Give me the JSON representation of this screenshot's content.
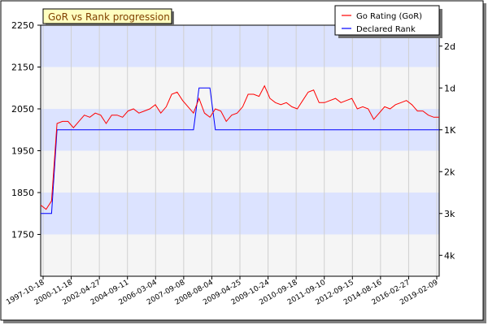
{
  "chart_data": {
    "type": "line",
    "title": "GoR vs Rank progression",
    "legend": {
      "placement": "top-right",
      "entries": [
        {
          "name": "Go Rating (GoR)",
          "color": "#ff0000"
        },
        {
          "name": "Declared Rank",
          "color": "#0000ff"
        }
      ]
    },
    "colors": {
      "band_blue": "#dce3ff",
      "band_grey": "#f5f5f5",
      "title_bg": "#ffffc0"
    },
    "x_tick_labels": [
      "1997-10-18",
      "2000-11-18",
      "2002-04-27",
      "2004-09-11",
      "2006-03-04",
      "2007-09-08",
      "2008-08-04",
      "2009-04-25",
      "2009-10-24",
      "2010-09-18",
      "2011-09-10",
      "2012-09-15",
      "2014-08-16",
      "2016-02-27",
      "2019-02-09"
    ],
    "y_left": {
      "ticks": [
        2250,
        2150,
        2050,
        1950,
        1850,
        1750
      ],
      "ylim": [
        1650,
        2250
      ]
    },
    "y_right": {
      "ticks": [
        "2d",
        "1d",
        "1K",
        "2k",
        "3k",
        "4k"
      ]
    },
    "grid": true,
    "series": [
      {
        "name": "Go Rating (GoR)",
        "values": [
          1820,
          1810,
          1830,
          2015,
          2020,
          2020,
          2005,
          2020,
          2035,
          2030,
          2040,
          2035,
          2015,
          2035,
          2035,
          2030,
          2045,
          2050,
          2040,
          2045,
          2050,
          2060,
          2040,
          2055,
          2085,
          2090,
          2070,
          2055,
          2040,
          2075,
          2040,
          2030,
          2050,
          2045,
          2020,
          2035,
          2040,
          2055,
          2085,
          2085,
          2080,
          2105,
          2075,
          2065,
          2060,
          2065,
          2055,
          2050,
          2070,
          2090,
          2095,
          2065,
          2065,
          2070,
          2075,
          2065,
          2070,
          2075,
          2050,
          2055,
          2050,
          2025,
          2040,
          2055,
          2050,
          2060,
          2065,
          2070,
          2060,
          2045,
          2045,
          2035,
          2030,
          2030
        ]
      },
      {
        "name": "Declared Rank",
        "values": [
          1800,
          1800,
          1800,
          2000,
          2000,
          2000,
          2000,
          2000,
          2000,
          2000,
          2000,
          2000,
          2000,
          2000,
          2000,
          2000,
          2000,
          2000,
          2000,
          2000,
          2000,
          2000,
          2000,
          2000,
          2000,
          2000,
          2000,
          2000,
          2000,
          2100,
          2100,
          2100,
          2000,
          2000,
          2000,
          2000,
          2000,
          2000,
          2000,
          2000,
          2000,
          2000,
          2000,
          2000,
          2000,
          2000,
          2000,
          2000,
          2000,
          2000,
          2000,
          2000,
          2000,
          2000,
          2000,
          2000,
          2000,
          2000,
          2000,
          2000,
          2000,
          2000,
          2000,
          2000,
          2000,
          2000,
          2000,
          2000,
          2000,
          2000,
          2000,
          2000,
          2000,
          2000
        ]
      }
    ]
  }
}
